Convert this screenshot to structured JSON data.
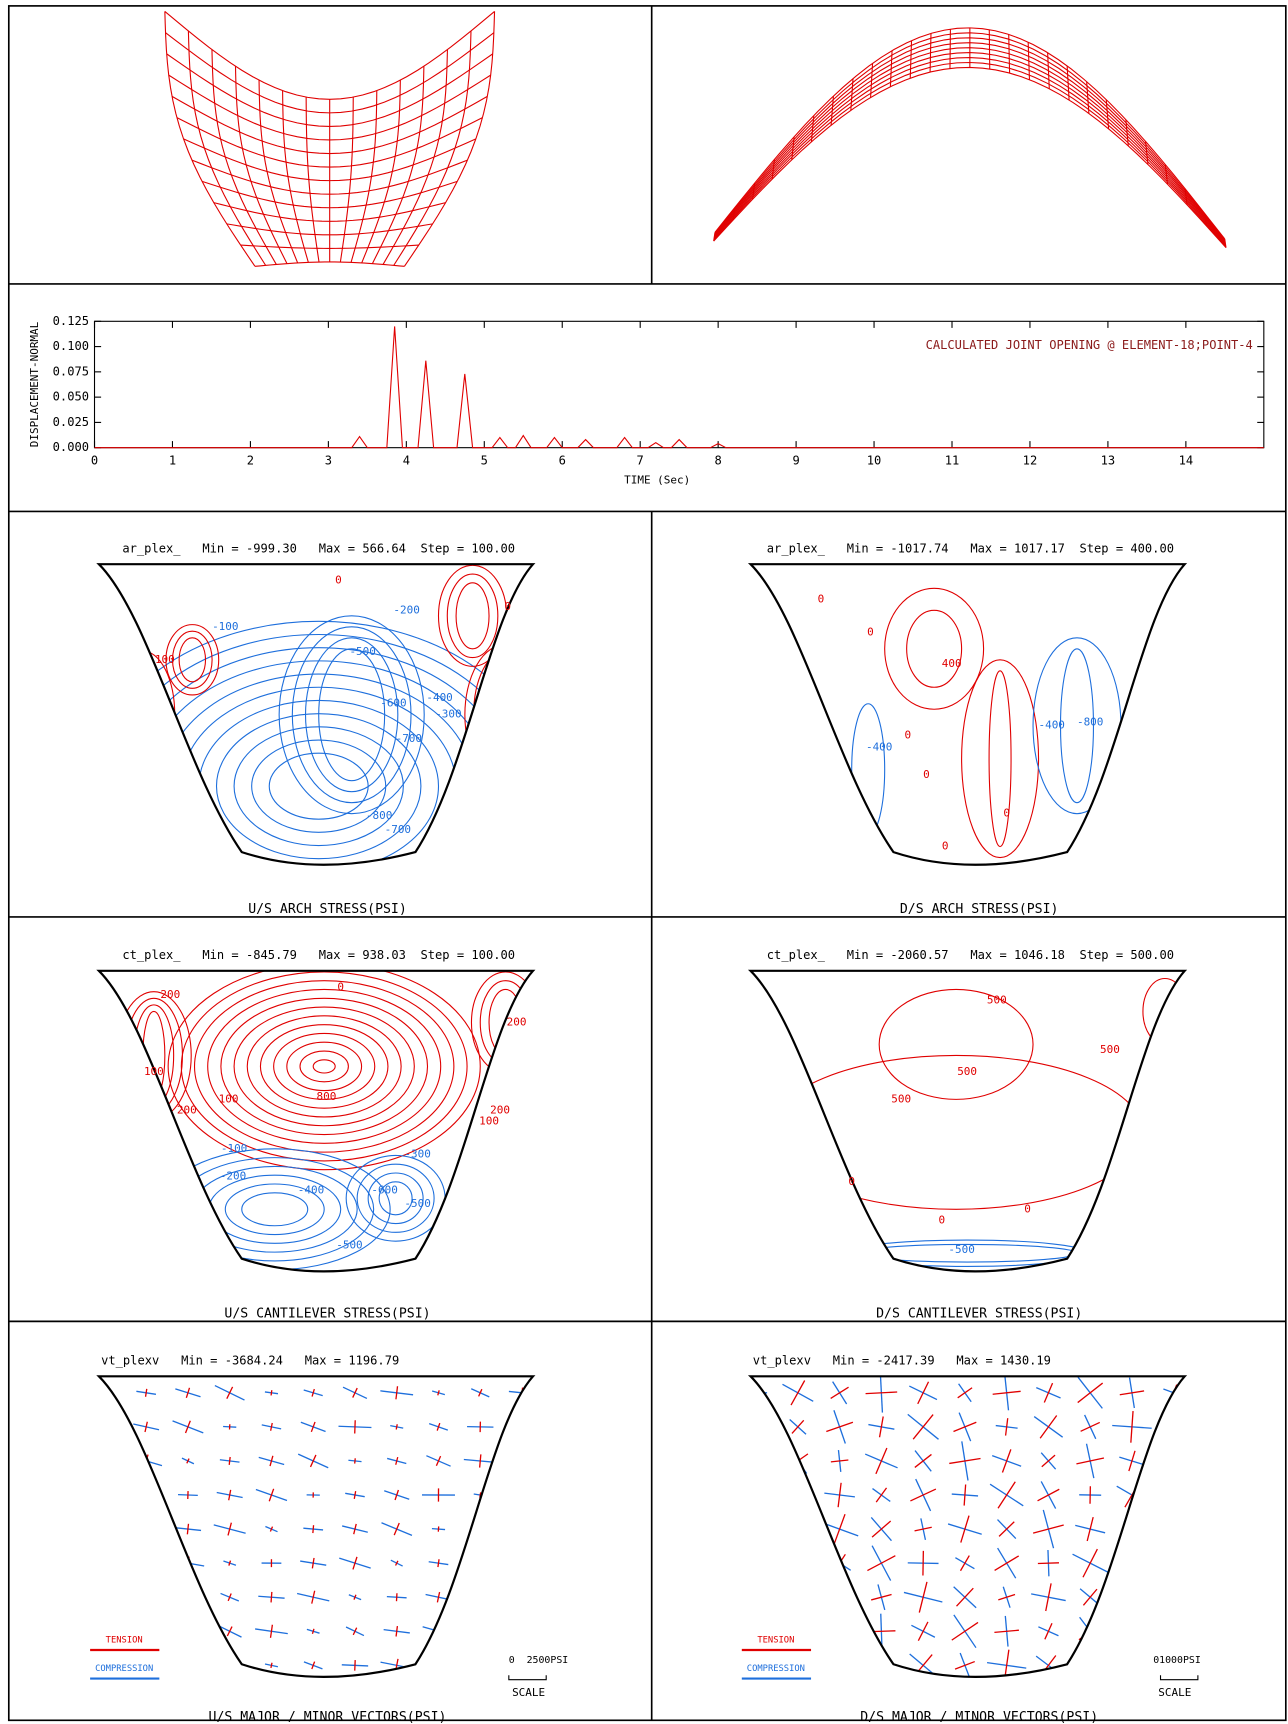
{
  "chart_data": {
    "type": "line",
    "annotation": "CALCULATED JOINT OPENING @ ELEMENT-18;POINT-4",
    "xlabel": "TIME (Sec)",
    "ylabel": "DISPLACEMENT-NORMAL",
    "x": [
      0,
      3.3,
      3.4,
      3.5,
      3.75,
      3.85,
      3.95,
      4.15,
      4.25,
      4.35,
      4.65,
      4.75,
      4.85,
      5.1,
      5.2,
      5.3,
      5.4,
      5.5,
      5.6,
      5.8,
      5.9,
      6.0,
      6.2,
      6.3,
      6.4,
      6.7,
      6.8,
      6.9,
      7.1,
      7.2,
      7.3,
      7.4,
      7.5,
      7.6,
      7.9,
      8.0,
      8.1,
      15
    ],
    "values": [
      0,
      0,
      0.011,
      0,
      0,
      0.12,
      0,
      0,
      0.086,
      0,
      0,
      0.073,
      0,
      0,
      0.01,
      0,
      0,
      0.012,
      0,
      0,
      0.01,
      0,
      0,
      0.008,
      0,
      0,
      0.01,
      0,
      0,
      0.005,
      0,
      0,
      0.008,
      0,
      0,
      0.004,
      0,
      0
    ],
    "color": "#e00000",
    "xlim": [
      0,
      15
    ],
    "xticks": [
      0,
      1,
      2,
      3,
      4,
      5,
      6,
      7,
      8,
      9,
      10,
      11,
      12,
      13,
      14
    ],
    "ylim": [
      0,
      0.125
    ],
    "yticks": [
      {
        "value": 0,
        "label": "0.000"
      },
      {
        "value": 0.025,
        "label": "0.025"
      },
      {
        "value": 0.05,
        "label": "0.050"
      },
      {
        "value": 0.075,
        "label": "0.075"
      },
      {
        "value": 0.1,
        "label": "0.100"
      },
      {
        "value": 0.125,
        "label": "0.125"
      }
    ]
  },
  "contour_panels": [
    {
      "header": "ar_plex_   Min = -999.30   Max = 566.64  Step = 100.00",
      "caption": "U/S ARCH STRESS(PSI)",
      "labels": [
        "0",
        "-100",
        "100",
        "-200",
        "-500",
        "-600",
        "-700",
        "-400",
        "-300",
        "-800",
        "-700",
        "0"
      ]
    },
    {
      "header": "ar_plex_   Min = -1017.74   Max = 1017.17  Step = 400.00",
      "caption": "D/S ARCH STRESS(PSI)",
      "labels": [
        "0",
        "0",
        "400",
        "0",
        "-400",
        "-400",
        "-800",
        "0",
        "0",
        "0"
      ]
    },
    {
      "header": "ct_plex_   Min = -845.79   Max = 938.03  Step = 100.00",
      "caption": "U/S CANTILEVER STRESS(PSI)",
      "labels": [
        "0",
        "200",
        "200",
        "100",
        "100",
        "200",
        "800",
        "-100",
        "-400",
        "-600",
        "-500",
        "-300",
        "-200",
        "-500",
        "100",
        "200"
      ]
    },
    {
      "header": "ct_plex_   Min = -2060.57   Max = 1046.18  Step = 500.00",
      "caption": "D/S CANTILEVER STRESS(PSI)",
      "labels": [
        "500",
        "500",
        "500",
        "500",
        "0",
        "0",
        "0",
        "-500"
      ]
    }
  ],
  "vector_panels": [
    {
      "header": "vt_plexv   Min = -3684.24   Max = 1196.79",
      "caption": "U/S MAJOR / MINOR  VECTORS(PSI)",
      "tension": "TENSION",
      "compression": "COMPRESSION",
      "scale_value": "0  2500PSI",
      "scale": "SCALE"
    },
    {
      "header": "vt_plexv   Min = -2417.39   Max = 1430.19",
      "caption": "D/S MAJOR / MINOR  VECTORS(PSI)",
      "tension": "TENSION",
      "compression": "COMPRESSION",
      "scale_value": "01000PSI",
      "scale": "SCALE"
    }
  ]
}
